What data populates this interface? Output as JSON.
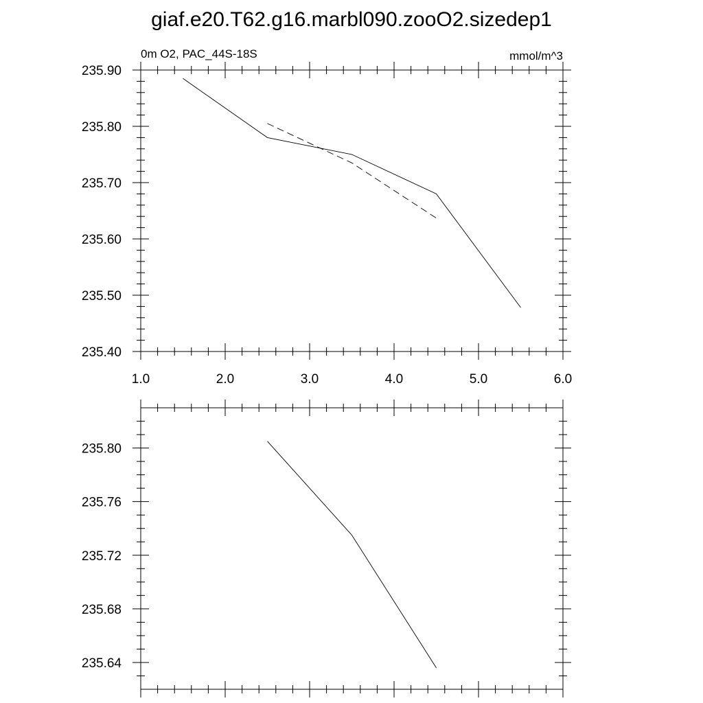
{
  "page_title": "giaf.e20.T62.g16.marbl090.zooO2.sizedep1",
  "chart_data": [
    {
      "type": "line",
      "left_subtitle": "0m O2, PAC_44S-18S",
      "right_subtitle": "mmol/m^3",
      "xlim": [
        1.0,
        6.0
      ],
      "ylim": [
        235.4,
        235.9
      ],
      "x_ticks": [
        1.0,
        2.0,
        3.0,
        4.0,
        5.0,
        6.0
      ],
      "x_tick_labels": [
        "1.0",
        "2.0",
        "3.0",
        "4.0",
        "5.0",
        "6.0"
      ],
      "y_ticks": [
        235.4,
        235.5,
        235.6,
        235.7,
        235.8,
        235.9
      ],
      "y_tick_labels": [
        "235.40",
        "235.50",
        "235.60",
        "235.70",
        "235.80",
        "235.90"
      ],
      "grid": false,
      "series": [
        {
          "line_style": "solid",
          "x": [
            1.5,
            2.5,
            3.5,
            4.5,
            5.5
          ],
          "y": [
            235.885,
            235.78,
            235.75,
            235.68,
            235.478
          ]
        },
        {
          "line_style": "dashed",
          "x": [
            2.5,
            3.5,
            4.5
          ],
          "y": [
            235.805,
            235.735,
            235.637
          ]
        }
      ]
    },
    {
      "type": "line",
      "xlim": [
        1.0,
        6.0
      ],
      "ylim": [
        235.62,
        235.83
      ],
      "x_ticks": [
        1.0,
        2.0,
        3.0,
        4.0,
        5.0,
        6.0
      ],
      "x_tick_labels": [],
      "y_ticks": [
        235.64,
        235.68,
        235.72,
        235.76,
        235.8
      ],
      "y_tick_labels": [
        "235.64",
        "235.68",
        "235.72",
        "235.76",
        "235.80"
      ],
      "grid": false,
      "series": [
        {
          "line_style": "solid",
          "x": [
            2.5,
            3.5,
            4.5
          ],
          "y": [
            235.805,
            235.735,
            235.636
          ]
        }
      ]
    }
  ]
}
